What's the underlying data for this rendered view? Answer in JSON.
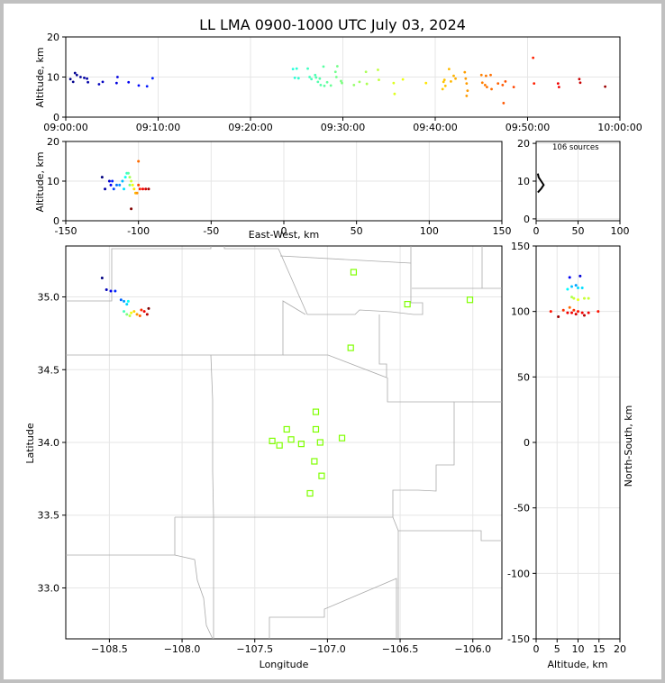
{
  "title": "LL LMA 0900-1000 UTC July 03, 2024",
  "panel_labels": {
    "time_alt_ylabel": "Altitude, km",
    "ew_alt_ylabel": "Altitude, km",
    "ew_alt_xlabel": "East-West, km",
    "plan_xlabel": "Longitude",
    "plan_ylabel": "Latitude",
    "ns_alt_xlabel": "Altitude, km",
    "ns_alt_ylabel": "North-South, km",
    "histogram_note": "106 sources"
  },
  "chart_data": [
    {
      "type": "scatter",
      "panel": "time-altitude",
      "xlim": [
        "09:00:00",
        "10:00:00"
      ],
      "ylim": [
        0,
        20
      ],
      "x_ticks": [
        "09:00:00",
        "09:10:00",
        "09:20:00",
        "09:30:00",
        "09:40:00",
        "09:50:00",
        "10:00:00"
      ],
      "y_ticks": [
        0,
        10,
        20
      ],
      "color_scale": "time (blue → red)",
      "points_time_min_alt_km": [
        [
          0.5,
          9.5
        ],
        [
          0.8,
          8.8
        ],
        [
          1.0,
          11.0
        ],
        [
          1.2,
          10.5
        ],
        [
          1.6,
          10.0
        ],
        [
          2.0,
          9.8
        ],
        [
          2.3,
          9.6
        ],
        [
          2.4,
          8.7
        ],
        [
          3.6,
          8.2
        ],
        [
          4.0,
          8.8
        ],
        [
          5.5,
          8.5
        ],
        [
          5.6,
          10.0
        ],
        [
          6.8,
          8.7
        ],
        [
          7.9,
          7.9
        ],
        [
          8.8,
          7.7
        ],
        [
          9.4,
          9.7
        ],
        [
          24.6,
          12.0
        ],
        [
          24.8,
          9.8
        ],
        [
          25.2,
          9.7
        ],
        [
          25.0,
          12.1
        ],
        [
          26.2,
          12.1
        ],
        [
          26.4,
          10.0
        ],
        [
          26.6,
          9.5
        ],
        [
          27.0,
          10.5
        ],
        [
          27.1,
          9.9
        ],
        [
          27.3,
          8.8
        ],
        [
          27.5,
          9.6
        ],
        [
          27.6,
          8.0
        ],
        [
          27.9,
          12.6
        ],
        [
          28.0,
          7.8
        ],
        [
          28.3,
          8.7
        ],
        [
          28.7,
          7.9
        ],
        [
          29.2,
          11.3
        ],
        [
          29.3,
          10.0
        ],
        [
          29.4,
          12.7
        ],
        [
          29.8,
          9.0
        ],
        [
          29.9,
          8.5
        ],
        [
          31.2,
          8.0
        ],
        [
          31.8,
          8.8
        ],
        [
          32.5,
          11.3
        ],
        [
          32.6,
          8.3
        ],
        [
          33.8,
          11.8
        ],
        [
          33.9,
          9.3
        ],
        [
          35.5,
          8.5
        ],
        [
          35.6,
          5.8
        ],
        [
          36.5,
          9.4
        ],
        [
          39.0,
          8.5
        ],
        [
          40.8,
          7.0
        ],
        [
          40.9,
          8.8
        ],
        [
          41.0,
          9.3
        ],
        [
          41.1,
          7.8
        ],
        [
          41.5,
          12.0
        ],
        [
          41.7,
          8.9
        ],
        [
          42.0,
          10.3
        ],
        [
          42.2,
          9.6
        ],
        [
          43.2,
          11.2
        ],
        [
          43.3,
          9.6
        ],
        [
          43.4,
          8.4
        ],
        [
          43.4,
          5.3
        ],
        [
          43.5,
          6.6
        ],
        [
          45.0,
          10.5
        ],
        [
          45.1,
          8.6
        ],
        [
          45.4,
          8.0
        ],
        [
          45.5,
          10.3
        ],
        [
          45.6,
          7.5
        ],
        [
          46.0,
          10.5
        ],
        [
          46.1,
          7.0
        ],
        [
          46.8,
          8.4
        ],
        [
          47.3,
          8.0
        ],
        [
          47.6,
          8.9
        ],
        [
          48.5,
          7.5
        ],
        [
          47.4,
          3.5
        ],
        [
          50.6,
          14.8
        ],
        [
          50.7,
          8.4
        ],
        [
          53.3,
          8.4
        ],
        [
          53.4,
          7.5
        ],
        [
          55.6,
          9.5
        ],
        [
          55.7,
          8.6
        ],
        [
          58.4,
          7.6
        ]
      ]
    },
    {
      "type": "scatter",
      "panel": "east-west-altitude",
      "xlim": [
        -150,
        150
      ],
      "ylim": [
        0,
        20
      ],
      "x_ticks": [
        -150,
        -100,
        -50,
        0,
        50,
        100,
        150
      ],
      "y_ticks": [
        0,
        10,
        20
      ],
      "points_x_km_alt_km": [
        [
          -125,
          11
        ],
        [
          -123,
          8
        ],
        [
          -120,
          10
        ],
        [
          -119,
          9
        ],
        [
          -118,
          10
        ],
        [
          -117,
          8
        ],
        [
          -115,
          9
        ],
        [
          -113,
          9
        ],
        [
          -111,
          10
        ],
        [
          -110,
          8
        ],
        [
          -109,
          11
        ],
        [
          -108,
          12
        ],
        [
          -107,
          12
        ],
        [
          -106,
          9
        ],
        [
          -106,
          11
        ],
        [
          -105,
          10
        ],
        [
          -104,
          9
        ],
        [
          -103,
          8
        ],
        [
          -102,
          7
        ],
        [
          -101,
          7
        ],
        [
          -100,
          15
        ],
        [
          -100,
          9
        ],
        [
          -99,
          8
        ],
        [
          -97,
          8
        ],
        [
          -95,
          8
        ],
        [
          -93,
          8
        ],
        [
          -105,
          3
        ]
      ]
    },
    {
      "type": "histogram",
      "panel": "altitude-histogram",
      "xlim": [
        0,
        100
      ],
      "ylim": [
        0,
        20
      ],
      "x_ticks": [
        0,
        50,
        100
      ],
      "y_ticks": [
        0,
        10,
        20
      ],
      "counts_by_alt_km": [
        [
          7,
          2
        ],
        [
          8,
          6
        ],
        [
          9,
          9
        ],
        [
          10,
          6
        ],
        [
          11,
          3
        ],
        [
          12,
          2
        ]
      ]
    },
    {
      "type": "scatter",
      "panel": "plan-view",
      "xlim": [
        -108.8,
        -105.8
      ],
      "ylim": [
        32.65,
        35.35
      ],
      "x_ticks": [
        -108.5,
        -108.0,
        -107.5,
        -107.0,
        -106.5,
        -106.0
      ],
      "x_tick_labels": [
        "−108.5",
        "−108.0",
        "−107.5",
        "−107.0",
        "−106.5",
        "−106.0"
      ],
      "y_ticks": [
        33.0,
        33.5,
        34.0,
        34.5,
        35.0
      ],
      "y_tick_labels": [
        "33.0",
        "33.5",
        "34.0",
        "34.5",
        "35.0"
      ],
      "sources_lon_lat": [
        [
          -108.55,
          35.13
        ],
        [
          -108.52,
          35.05
        ],
        [
          -108.49,
          35.04
        ],
        [
          -108.46,
          35.04
        ],
        [
          -108.42,
          34.98
        ],
        [
          -108.4,
          34.97
        ],
        [
          -108.38,
          34.95
        ],
        [
          -108.37,
          34.97
        ],
        [
          -108.4,
          34.9
        ],
        [
          -108.38,
          34.88
        ],
        [
          -108.36,
          34.87
        ],
        [
          -108.35,
          34.89
        ],
        [
          -108.33,
          34.9
        ],
        [
          -108.31,
          34.88
        ],
        [
          -108.29,
          34.87
        ],
        [
          -108.28,
          34.91
        ],
        [
          -108.26,
          34.9
        ],
        [
          -108.24,
          34.88
        ],
        [
          -108.23,
          34.92
        ]
      ],
      "stations_lon_lat": [
        [
          -106.82,
          35.17
        ],
        [
          -106.45,
          34.95
        ],
        [
          -106.02,
          34.98
        ],
        [
          -106.84,
          34.65
        ],
        [
          -107.08,
          34.21
        ],
        [
          -107.28,
          34.09
        ],
        [
          -107.08,
          34.09
        ],
        [
          -107.25,
          34.02
        ],
        [
          -107.38,
          34.01
        ],
        [
          -107.33,
          33.98
        ],
        [
          -107.18,
          33.99
        ],
        [
          -107.05,
          34.0
        ],
        [
          -106.9,
          34.03
        ],
        [
          -107.09,
          33.87
        ],
        [
          -107.04,
          33.77
        ],
        [
          -107.12,
          33.65
        ]
      ]
    },
    {
      "type": "scatter",
      "panel": "altitude-north-south",
      "xlim": [
        0,
        20
      ],
      "ylim": [
        -150,
        150
      ],
      "x_ticks": [
        0,
        5,
        10,
        15,
        20
      ],
      "y_ticks": [
        -150,
        -100,
        -50,
        0,
        50,
        100,
        150
      ],
      "points_alt_km_ns_km": [
        [
          8.0,
          126
        ],
        [
          10.5,
          127
        ],
        [
          7.5,
          117
        ],
        [
          8.5,
          119
        ],
        [
          9.5,
          120
        ],
        [
          10.0,
          118
        ],
        [
          11.0,
          118
        ],
        [
          8.5,
          111
        ],
        [
          9.0,
          110
        ],
        [
          10.0,
          109
        ],
        [
          11.5,
          110
        ],
        [
          12.5,
          110
        ],
        [
          3.5,
          100
        ],
        [
          5.3,
          96
        ],
        [
          6.5,
          101
        ],
        [
          7.5,
          99
        ],
        [
          8.0,
          103
        ],
        [
          8.5,
          99
        ],
        [
          9.0,
          101
        ],
        [
          9.5,
          98
        ],
        [
          10.0,
          100
        ],
        [
          11.0,
          99
        ],
        [
          11.5,
          97
        ],
        [
          12.5,
          99
        ],
        [
          14.8,
          100
        ]
      ]
    }
  ]
}
